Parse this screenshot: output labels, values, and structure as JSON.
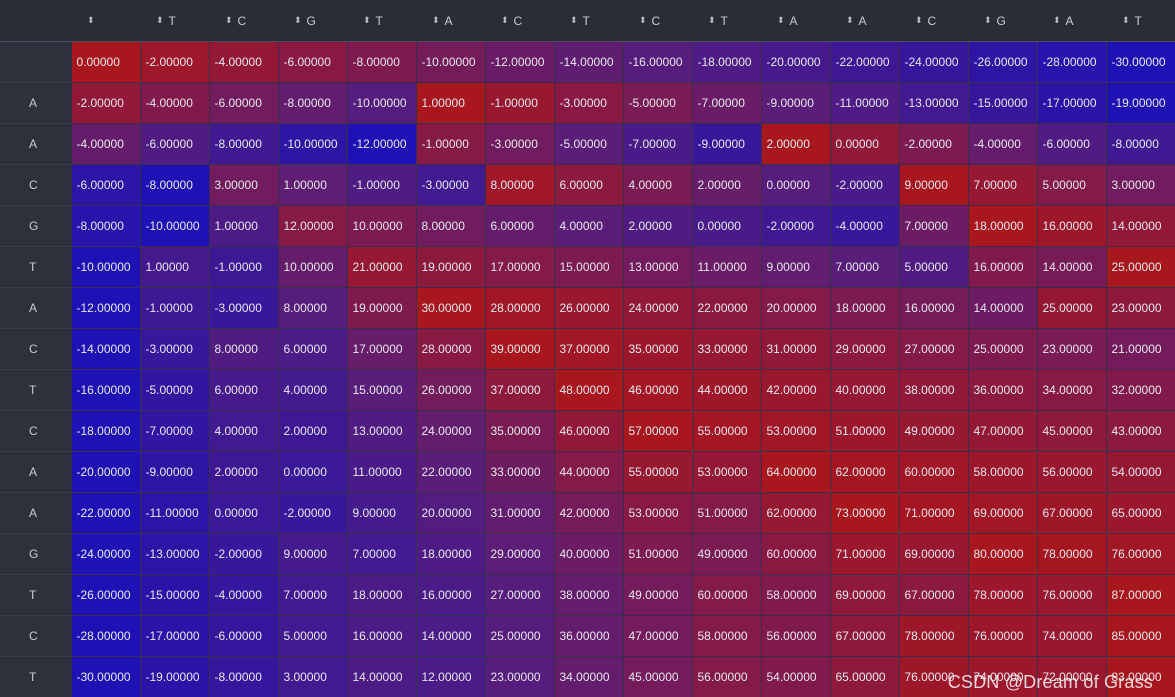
{
  "table": {
    "columns": [
      "",
      "T",
      "C",
      "G",
      "T",
      "A",
      "C",
      "T",
      "C",
      "T",
      "A",
      "A",
      "C",
      "G",
      "A",
      "T"
    ],
    "rows": [
      {
        "label": "",
        "values": [
          "0.00000",
          "-2.00000",
          "-4.00000",
          "-6.00000",
          "-8.00000",
          "-10.00000",
          "-12.00000",
          "-14.00000",
          "-16.00000",
          "-18.00000",
          "-20.00000",
          "-22.00000",
          "-24.00000",
          "-26.00000",
          "-28.00000",
          "-30.00000"
        ]
      },
      {
        "label": "A",
        "values": [
          "-2.00000",
          "-4.00000",
          "-6.00000",
          "-8.00000",
          "-10.00000",
          "1.00000",
          "-1.00000",
          "-3.00000",
          "-5.00000",
          "-7.00000",
          "-9.00000",
          "-11.00000",
          "-13.00000",
          "-15.00000",
          "-17.00000",
          "-19.00000"
        ]
      },
      {
        "label": "A",
        "values": [
          "-4.00000",
          "-6.00000",
          "-8.00000",
          "-10.00000",
          "-12.00000",
          "-1.00000",
          "-3.00000",
          "-5.00000",
          "-7.00000",
          "-9.00000",
          "2.00000",
          "0.00000",
          "-2.00000",
          "-4.00000",
          "-6.00000",
          "-8.00000"
        ]
      },
      {
        "label": "C",
        "values": [
          "-6.00000",
          "-8.00000",
          "3.00000",
          "1.00000",
          "-1.00000",
          "-3.00000",
          "8.00000",
          "6.00000",
          "4.00000",
          "2.00000",
          "0.00000",
          "-2.00000",
          "9.00000",
          "7.00000",
          "5.00000",
          "3.00000"
        ]
      },
      {
        "label": "G",
        "values": [
          "-8.00000",
          "-10.00000",
          "1.00000",
          "12.00000",
          "10.00000",
          "8.00000",
          "6.00000",
          "4.00000",
          "2.00000",
          "0.00000",
          "-2.00000",
          "-4.00000",
          "7.00000",
          "18.00000",
          "16.00000",
          "14.00000"
        ]
      },
      {
        "label": "T",
        "values": [
          "-10.00000",
          "1.00000",
          "-1.00000",
          "10.00000",
          "21.00000",
          "19.00000",
          "17.00000",
          "15.00000",
          "13.00000",
          "11.00000",
          "9.00000",
          "7.00000",
          "5.00000",
          "16.00000",
          "14.00000",
          "25.00000"
        ]
      },
      {
        "label": "A",
        "values": [
          "-12.00000",
          "-1.00000",
          "-3.00000",
          "8.00000",
          "19.00000",
          "30.00000",
          "28.00000",
          "26.00000",
          "24.00000",
          "22.00000",
          "20.00000",
          "18.00000",
          "16.00000",
          "14.00000",
          "25.00000",
          "23.00000"
        ]
      },
      {
        "label": "C",
        "values": [
          "-14.00000",
          "-3.00000",
          "8.00000",
          "6.00000",
          "17.00000",
          "28.00000",
          "39.00000",
          "37.00000",
          "35.00000",
          "33.00000",
          "31.00000",
          "29.00000",
          "27.00000",
          "25.00000",
          "23.00000",
          "21.00000"
        ]
      },
      {
        "label": "T",
        "values": [
          "-16.00000",
          "-5.00000",
          "6.00000",
          "4.00000",
          "15.00000",
          "26.00000",
          "37.00000",
          "48.00000",
          "46.00000",
          "44.00000",
          "42.00000",
          "40.00000",
          "38.00000",
          "36.00000",
          "34.00000",
          "32.00000"
        ]
      },
      {
        "label": "C",
        "values": [
          "-18.00000",
          "-7.00000",
          "4.00000",
          "2.00000",
          "13.00000",
          "24.00000",
          "35.00000",
          "46.00000",
          "57.00000",
          "55.00000",
          "53.00000",
          "51.00000",
          "49.00000",
          "47.00000",
          "45.00000",
          "43.00000"
        ]
      },
      {
        "label": "A",
        "values": [
          "-20.00000",
          "-9.00000",
          "2.00000",
          "0.00000",
          "11.00000",
          "22.00000",
          "33.00000",
          "44.00000",
          "55.00000",
          "53.00000",
          "64.00000",
          "62.00000",
          "60.00000",
          "58.00000",
          "56.00000",
          "54.00000"
        ]
      },
      {
        "label": "A",
        "values": [
          "-22.00000",
          "-11.00000",
          "0.00000",
          "-2.00000",
          "9.00000",
          "20.00000",
          "31.00000",
          "42.00000",
          "53.00000",
          "51.00000",
          "62.00000",
          "73.00000",
          "71.00000",
          "69.00000",
          "67.00000",
          "65.00000"
        ]
      },
      {
        "label": "G",
        "values": [
          "-24.00000",
          "-13.00000",
          "-2.00000",
          "9.00000",
          "7.00000",
          "18.00000",
          "29.00000",
          "40.00000",
          "51.00000",
          "49.00000",
          "60.00000",
          "71.00000",
          "69.00000",
          "80.00000",
          "78.00000",
          "76.00000"
        ]
      },
      {
        "label": "T",
        "values": [
          "-26.00000",
          "-15.00000",
          "-4.00000",
          "7.00000",
          "18.00000",
          "16.00000",
          "27.00000",
          "38.00000",
          "49.00000",
          "60.00000",
          "58.00000",
          "69.00000",
          "67.00000",
          "78.00000",
          "76.00000",
          "87.00000"
        ]
      },
      {
        "label": "C",
        "values": [
          "-28.00000",
          "-17.00000",
          "-6.00000",
          "5.00000",
          "16.00000",
          "14.00000",
          "25.00000",
          "36.00000",
          "47.00000",
          "58.00000",
          "56.00000",
          "67.00000",
          "78.00000",
          "76.00000",
          "74.00000",
          "85.00000"
        ]
      },
      {
        "label": "T",
        "values": [
          "-30.00000",
          "-19.00000",
          "-8.00000",
          "3.00000",
          "14.00000",
          "12.00000",
          "23.00000",
          "34.00000",
          "45.00000",
          "56.00000",
          "54.00000",
          "65.00000",
          "76.00000",
          "74.00000",
          "72.00000",
          "83.00000"
        ]
      }
    ],
    "sort_icon": "sort-updown-icon",
    "colors": {
      "low": "#1e12b4",
      "high": "#a8161e",
      "header_bg": "#2a2c37",
      "index_bg": "#2e303c"
    }
  },
  "watermark": "CSDN @Dream of Grass"
}
